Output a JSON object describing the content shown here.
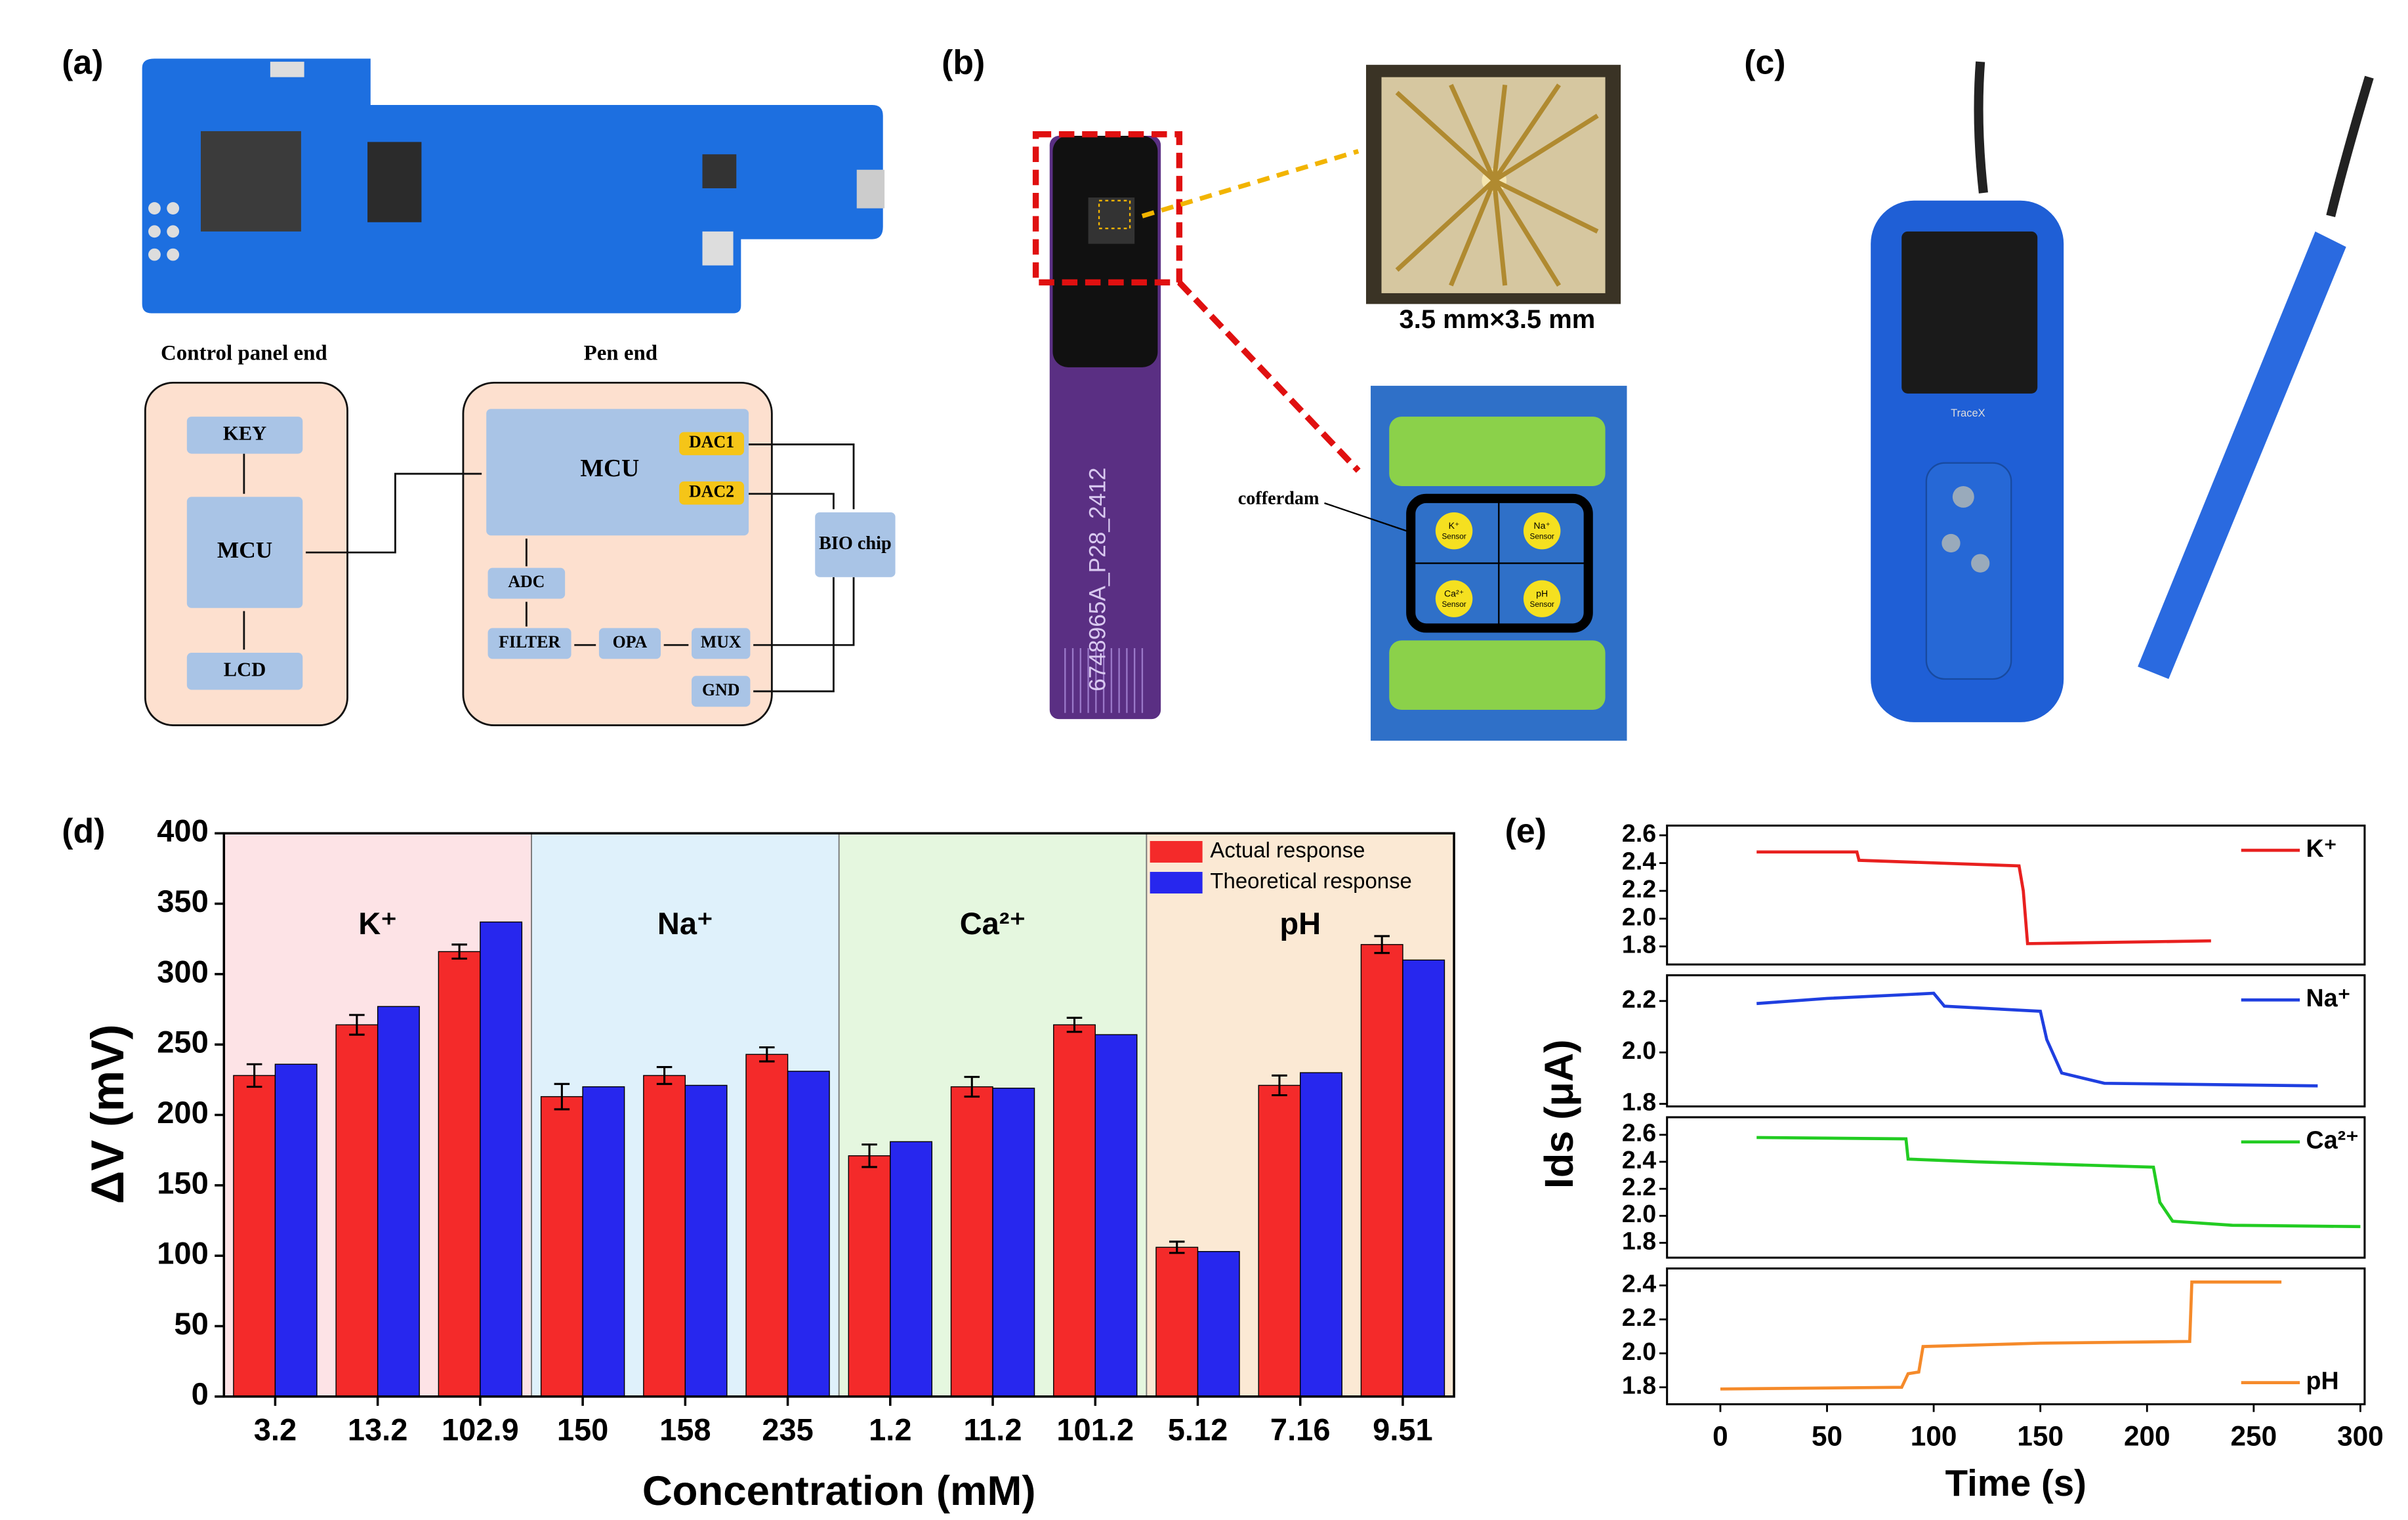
{
  "panels": [
    "(a)",
    "(b)",
    "(c)",
    "(d)",
    "(e)"
  ],
  "diagram": {
    "groups": [
      "Control panel end",
      "Pen end"
    ],
    "nodes": [
      "KEY",
      "MCU",
      "LCD",
      "MCU",
      "DAC1",
      "DAC2",
      "BIO chip",
      "ADC",
      "FILTER",
      "OPA",
      "MUX",
      "GND"
    ]
  },
  "chip": {
    "serial": "6748965A_P28_2412",
    "size": "3.5 mm×3.5 mm",
    "cofferdam": "cofferdam",
    "sensors": [
      "K⁺",
      "Na⁺",
      "Ca²⁺",
      "pH"
    ],
    "sensor_label": "Sensor"
  },
  "device": {
    "brand": "TraceX"
  },
  "chart_data": [
    {
      "type": "bar",
      "xlabel": "Concentration (mM)",
      "ylabel": "ΔV (mV)",
      "ylim": [
        0,
        400
      ],
      "yticks": [
        0,
        50,
        100,
        150,
        200,
        250,
        300,
        350,
        400
      ],
      "legend": "upper right",
      "groups": [
        {
          "name": "K⁺",
          "color": "#fde3e6",
          "categories": [
            "3.2",
            "13.2",
            "102.9"
          ]
        },
        {
          "name": "Na⁺",
          "color": "#dff1fb",
          "categories": [
            "150",
            "158",
            "235"
          ]
        },
        {
          "name": "Ca²⁺",
          "color": "#e5f7df",
          "categories": [
            "1.2",
            "11.2",
            "101.2"
          ]
        },
        {
          "name": "pH",
          "color": "#fbe9d4",
          "categories": [
            "5.12",
            "7.16",
            "9.51"
          ]
        }
      ],
      "series": [
        {
          "name": "Actual response",
          "color": "#f42a2a",
          "values": [
            228,
            264,
            316,
            213,
            228,
            243,
            171,
            220,
            264,
            106,
            221,
            321
          ],
          "error": [
            8,
            7,
            5,
            9,
            6,
            5,
            8,
            7,
            5,
            4,
            7,
            6
          ]
        },
        {
          "name": "Theoretical response",
          "color": "#2727ee",
          "values": [
            236,
            277,
            337,
            220,
            221,
            231,
            181,
            219,
            257,
            103,
            230,
            310
          ]
        }
      ]
    },
    {
      "type": "line",
      "ylabel": "Ids (μA)",
      "xlim": [
        -25,
        302
      ],
      "ylim": [
        1.67,
        2.67
      ],
      "yticks": [
        {
          "value": 1.8,
          "label": "1.8"
        },
        {
          "value": 2,
          "label": "2.0"
        },
        {
          "value": 2.2,
          "label": "2.2"
        },
        {
          "value": 2.4,
          "label": "2.4"
        },
        {
          "value": 2.6,
          "label": "2.6"
        }
      ],
      "legend": "upper right",
      "series": [
        {
          "name": "K⁺",
          "color": "#e8201f",
          "x": [
            17,
            64,
            65,
            140,
            142,
            144,
            230
          ],
          "values": [
            2.48,
            2.48,
            2.42,
            2.38,
            2.2,
            1.82,
            1.84
          ]
        }
      ]
    },
    {
      "type": "line",
      "xlim": [
        -25,
        302
      ],
      "ylim": [
        1.79,
        2.3
      ],
      "yticks": [
        {
          "value": 1.8,
          "label": "1.8"
        },
        {
          "value": 2,
          "label": "2.0"
        },
        {
          "value": 2.2,
          "label": "2.2"
        }
      ],
      "legend": "upper right",
      "series": [
        {
          "name": "Na⁺",
          "color": "#1f3fe0",
          "x": [
            17,
            50,
            100,
            105,
            150,
            153,
            160,
            180,
            280
          ],
          "values": [
            2.19,
            2.21,
            2.23,
            2.18,
            2.16,
            2.05,
            1.92,
            1.88,
            1.87
          ]
        }
      ]
    },
    {
      "type": "line",
      "xlim": [
        -25,
        302
      ],
      "ylim": [
        1.69,
        2.73
      ],
      "yticks": [
        {
          "value": 1.8,
          "label": "1.8"
        },
        {
          "value": 2,
          "label": "2.0"
        },
        {
          "value": 2.2,
          "label": "2.2"
        },
        {
          "value": 2.4,
          "label": "2.4"
        },
        {
          "value": 2.6,
          "label": "2.6"
        }
      ],
      "legend": "upper right",
      "series": [
        {
          "name": "Ca²⁺",
          "color": "#22cc22",
          "x": [
            17,
            87,
            88,
            120,
            203,
            206,
            212,
            240,
            300
          ],
          "values": [
            2.58,
            2.57,
            2.42,
            2.4,
            2.36,
            2.1,
            1.96,
            1.93,
            1.92
          ]
        }
      ]
    },
    {
      "type": "line",
      "xlabel": "Time (s)",
      "xlim": [
        -25,
        302
      ],
      "xticks": [
        0,
        50,
        100,
        150,
        200,
        250,
        300
      ],
      "ylim": [
        1.7,
        2.5
      ],
      "yticks": [
        {
          "value": 1.8,
          "label": "1.8"
        },
        {
          "value": 2,
          "label": "2.0"
        },
        {
          "value": 2.2,
          "label": "2.2"
        },
        {
          "value": 2.4,
          "label": "2.4"
        }
      ],
      "legend": "lower right",
      "series": [
        {
          "name": "pH",
          "color": "#f58a2a",
          "x": [
            0,
            85,
            88,
            93,
            95,
            150,
            220,
            221,
            263
          ],
          "values": [
            1.79,
            1.8,
            1.88,
            1.89,
            2.04,
            2.06,
            2.07,
            2.42,
            2.42
          ]
        }
      ]
    }
  ]
}
